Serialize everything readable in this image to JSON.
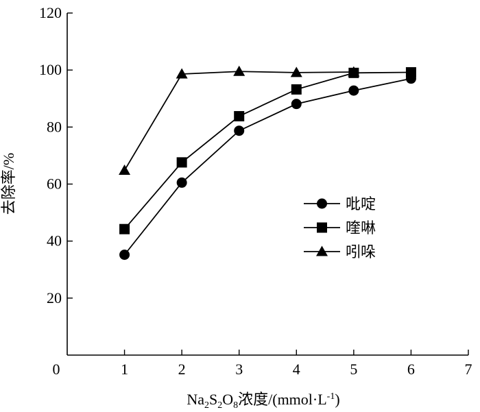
{
  "chart_data": {
    "type": "line",
    "xlabel": {
      "prefix": "Na",
      "sub1": "2",
      "mid1": "S",
      "sub2": "2",
      "mid2": "O",
      "sub3": "8",
      "suffix": "浓度/(mmol·L",
      "sup": "-1",
      "close": ")"
    },
    "ylabel": "去除率/%",
    "xlim": [
      0,
      7
    ],
    "ylim": [
      0,
      120
    ],
    "xticks": [
      0,
      1,
      2,
      3,
      4,
      5,
      6,
      7
    ],
    "yticks": [
      20,
      40,
      60,
      80,
      100,
      120
    ],
    "grid": false,
    "legend_position": "center-right",
    "x": [
      1,
      2,
      3,
      4,
      5,
      6
    ],
    "series": [
      {
        "name": "吡啶",
        "marker": "circle",
        "x": [
          1,
          2,
          3,
          4,
          5,
          6
        ],
        "values": [
          35.2,
          60.5,
          78.7,
          88.1,
          92.8,
          97.0
        ]
      },
      {
        "name": "喹啉",
        "marker": "square",
        "x": [
          1,
          2,
          3,
          4,
          5,
          6
        ],
        "values": [
          44.2,
          67.6,
          83.8,
          93.2,
          99.0,
          99.2
        ]
      },
      {
        "name": "吲哚",
        "marker": "triangle",
        "x": [
          1,
          2,
          3,
          4,
          5
        ],
        "values": [
          64.8,
          98.6,
          99.5,
          99.1,
          99.3
        ]
      }
    ]
  }
}
